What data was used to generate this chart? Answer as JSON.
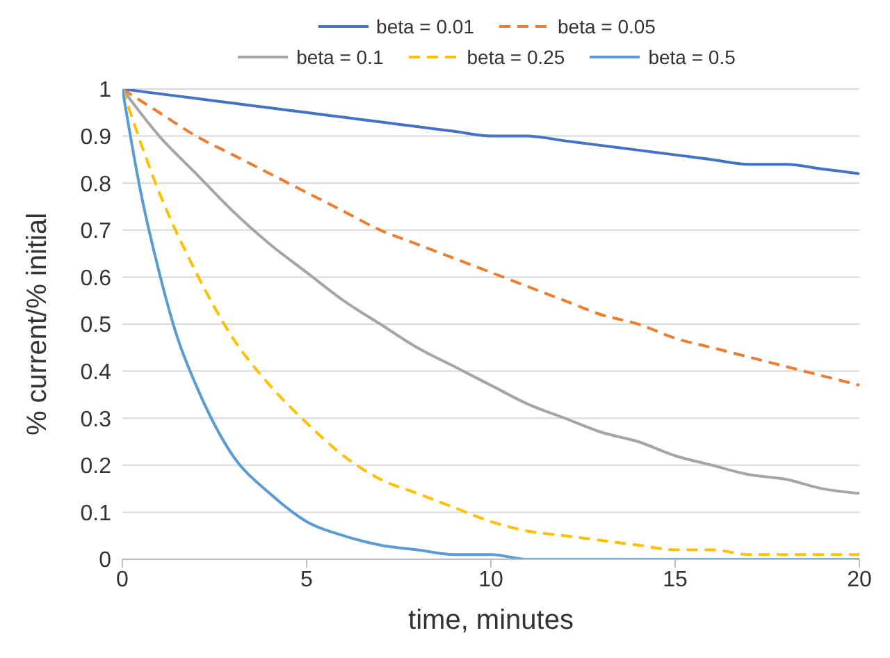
{
  "chart_data": {
    "type": "line",
    "xlabel": "time, minutes",
    "ylabel": "% current/% initial",
    "xlim": [
      0,
      20
    ],
    "xticks": [
      0,
      5,
      10,
      15,
      20
    ],
    "ylim": [
      0,
      1
    ],
    "yticks": [
      0,
      0.1,
      0.2,
      0.3,
      0.4,
      0.5,
      0.6,
      0.7,
      0.8,
      0.9,
      1
    ],
    "grid": "y",
    "legend": "top",
    "marker": "none",
    "x": [
      0,
      1,
      2,
      3,
      4,
      5,
      6,
      7,
      8,
      9,
      10,
      11,
      12,
      13,
      14,
      15,
      16,
      17,
      18,
      19,
      20
    ],
    "series": [
      {
        "name": "beta = 0.01",
        "color": "#4472c4",
        "line_style": "solid",
        "values": [
          1,
          0.99,
          0.98,
          0.97,
          0.96,
          0.95,
          0.94,
          0.93,
          0.92,
          0.91,
          0.9,
          0.9,
          0.89,
          0.88,
          0.87,
          0.86,
          0.85,
          0.84,
          0.84,
          0.83,
          0.82
        ]
      },
      {
        "name": "beta = 0.05",
        "color": "#ed7d31",
        "line_style": "dashed",
        "values": [
          1,
          0.95,
          0.9,
          0.86,
          0.82,
          0.78,
          0.74,
          0.7,
          0.67,
          0.64,
          0.61,
          0.58,
          0.55,
          0.52,
          0.5,
          0.47,
          0.45,
          0.43,
          0.41,
          0.39,
          0.37
        ]
      },
      {
        "name": "beta = 0.1",
        "color": "#a5a5a5",
        "line_style": "solid",
        "values": [
          1,
          0.9,
          0.82,
          0.74,
          0.67,
          0.61,
          0.55,
          0.5,
          0.45,
          0.41,
          0.37,
          0.33,
          0.3,
          0.27,
          0.25,
          0.22,
          0.2,
          0.18,
          0.17,
          0.15,
          0.14
        ]
      },
      {
        "name": "beta = 0.25",
        "color": "#ffc000",
        "line_style": "dashed",
        "values": [
          1,
          0.78,
          0.61,
          0.47,
          0.37,
          0.29,
          0.22,
          0.17,
          0.14,
          0.11,
          0.08,
          0.06,
          0.05,
          0.04,
          0.03,
          0.02,
          0.02,
          0.01,
          0.01,
          0.01,
          0.01
        ]
      },
      {
        "name": "beta = 0.5",
        "color": "#5b9bd5",
        "line_style": "solid",
        "x": [
          0,
          0.5,
          1,
          1.5,
          2,
          3,
          4,
          5,
          6,
          7,
          8,
          9,
          10,
          11,
          12,
          13,
          14,
          15,
          16,
          17,
          18,
          19,
          20
        ],
        "values": [
          1,
          0.78,
          0.61,
          0.47,
          0.37,
          0.22,
          0.14,
          0.08,
          0.05,
          0.03,
          0.02,
          0.01,
          0.01,
          0,
          0,
          0,
          0,
          0,
          0,
          0,
          0,
          0,
          0
        ]
      }
    ]
  }
}
